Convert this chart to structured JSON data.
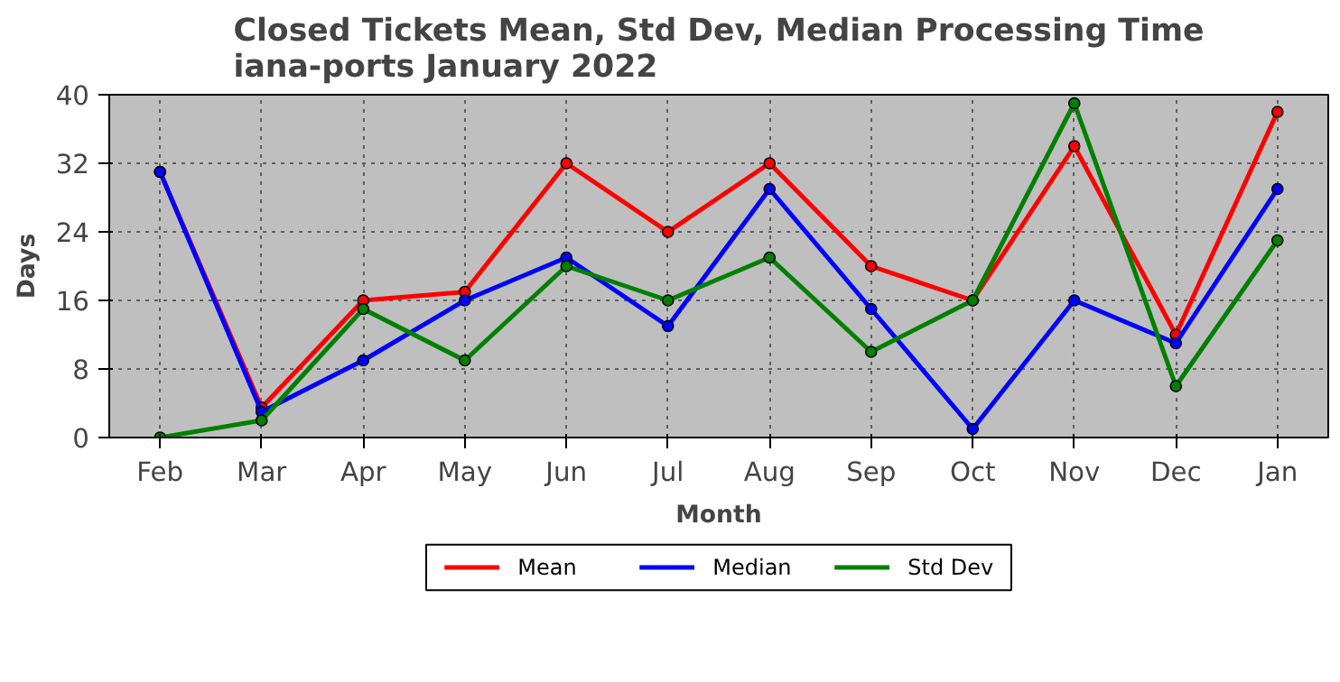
{
  "chart_data": {
    "type": "line",
    "title": "Closed Tickets Mean, Std Dev, Median Processing Time\niana-ports January 2022",
    "xlabel": "Month",
    "ylabel": "Days",
    "categories": [
      "Feb",
      "Mar",
      "Apr",
      "May",
      "Jun",
      "Jul",
      "Aug",
      "Sep",
      "Oct",
      "Nov",
      "Dec",
      "Jan"
    ],
    "series": [
      {
        "name": "Mean",
        "color": "#ff0000",
        "values": [
          31,
          3.5,
          16,
          17,
          32,
          24,
          32,
          20,
          16,
          34,
          12,
          38
        ]
      },
      {
        "name": "Median",
        "color": "#0000ff",
        "values": [
          31,
          3,
          9,
          16,
          21,
          13,
          29,
          15,
          1,
          16,
          11,
          29
        ]
      },
      {
        "name": "Std Dev",
        "color": "#008000",
        "values": [
          0,
          2,
          15,
          9,
          20,
          16,
          21,
          10,
          16,
          39,
          6,
          23
        ]
      }
    ],
    "ylim": [
      0,
      40
    ],
    "yticks": [
      0,
      8,
      16,
      24,
      32,
      40
    ],
    "grid": true,
    "legend": "bottom",
    "marker": "circle",
    "line_style": "solid"
  }
}
